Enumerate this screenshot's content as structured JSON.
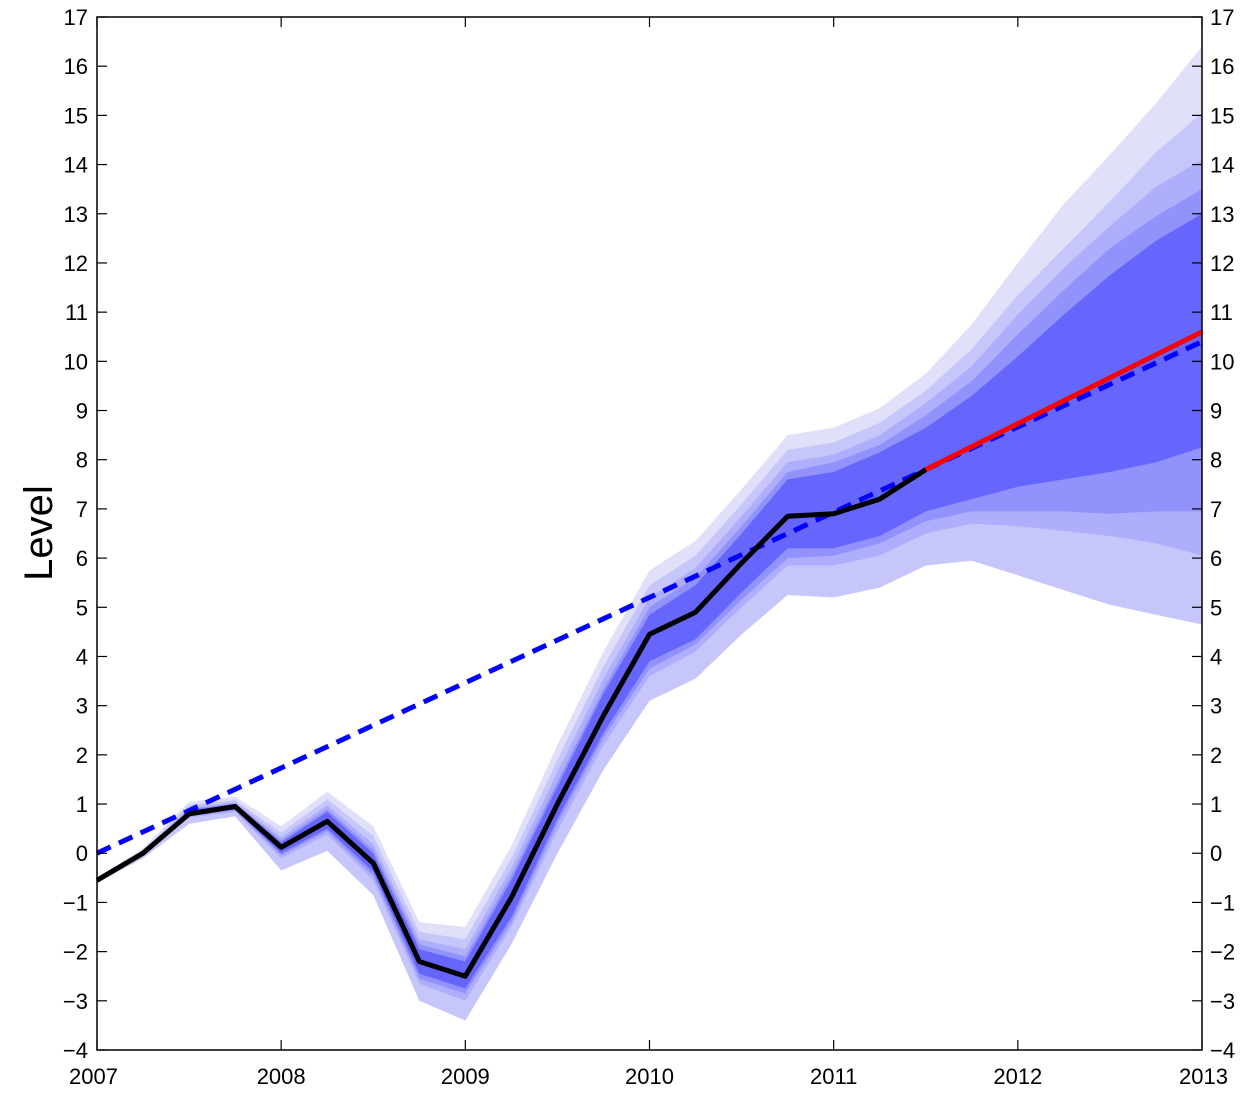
{
  "chart_data": {
    "type": "area",
    "title": "",
    "xlabel": "",
    "ylabel": "Level",
    "xlim": [
      2007,
      2013
    ],
    "ylim": [
      -4,
      17
    ],
    "x_ticks": [
      "2007",
      "2008",
      "2009",
      "2010",
      "2011",
      "2012",
      "2013"
    ],
    "y_ticks": [
      "−4",
      "−3",
      "−2",
      "−1",
      "0",
      "1",
      "2",
      "3",
      "4",
      "5",
      "6",
      "7",
      "8",
      "9",
      "10",
      "11",
      "12",
      "13",
      "14",
      "15",
      "16",
      "17"
    ],
    "y_ticks_mirrored_right": true,
    "grid": false,
    "legend": "none",
    "fan_x": [
      2007.0,
      2007.25,
      2007.5,
      2007.75,
      2008.0,
      2008.25,
      2008.5,
      2008.75,
      2009.0,
      2009.25,
      2009.5,
      2009.75,
      2010.0,
      2010.25,
      2010.5,
      2010.75,
      2011.0,
      2011.25,
      2011.5,
      2011.75,
      2012.0,
      2012.25,
      2012.5,
      2012.75,
      2013.0
    ],
    "fan_bands": [
      {
        "color": "#e0e0fb",
        "upper": [
          -0.5,
          0.1,
          1.05,
          1.15,
          0.55,
          1.25,
          0.55,
          -1.4,
          -1.5,
          0.15,
          2.2,
          4.1,
          5.75,
          6.35,
          7.4,
          8.5,
          8.65,
          9.05,
          9.75,
          10.75,
          12.0,
          13.2,
          14.2,
          15.25,
          16.4
        ],
        "lower": [
          -0.6,
          -0.1,
          0.6,
          0.75,
          -0.35,
          0.05,
          -0.85,
          -3.0,
          -3.4,
          -1.85,
          0.0,
          1.7,
          3.1,
          3.55,
          4.45,
          5.25,
          5.2,
          5.4,
          5.85,
          5.95,
          5.65,
          5.35,
          5.05,
          4.85,
          4.65
        ]
      },
      {
        "color": "#c6c6fb",
        "upper": [
          -0.5,
          0.05,
          0.98,
          1.08,
          0.42,
          1.1,
          0.35,
          -1.6,
          -1.75,
          -0.1,
          1.9,
          3.8,
          5.45,
          6.05,
          7.1,
          8.2,
          8.35,
          8.75,
          9.4,
          10.25,
          11.35,
          12.3,
          13.25,
          14.25,
          15.05
        ]
      },
      {
        "color": "#aeaefd",
        "upper": [
          -0.5,
          0.02,
          0.92,
          1.04,
          0.32,
          0.98,
          0.18,
          -1.75,
          -1.95,
          -0.3,
          1.65,
          3.55,
          5.2,
          5.8,
          6.85,
          7.95,
          8.1,
          8.5,
          9.15,
          9.9,
          10.95,
          11.9,
          12.75,
          13.55,
          14.1
        ],
        "lower": [
          -0.57,
          -0.04,
          0.72,
          0.84,
          -0.1,
          0.38,
          -0.55,
          -2.65,
          -3.0,
          -1.5,
          0.45,
          2.2,
          3.6,
          4.1,
          5.0,
          5.85,
          5.85,
          6.05,
          6.5,
          6.7,
          6.65,
          6.55,
          6.45,
          6.3,
          6.05
        ]
      },
      {
        "color": "#9292fd",
        "upper": [
          -0.5,
          0.0,
          0.9,
          1.01,
          0.26,
          0.9,
          0.07,
          -1.85,
          -2.1,
          -0.45,
          1.45,
          3.35,
          5.0,
          5.6,
          6.65,
          7.75,
          7.95,
          8.3,
          8.9,
          9.6,
          10.55,
          11.45,
          12.3,
          12.95,
          13.5
        ],
        "lower": [
          -0.55,
          -0.03,
          0.75,
          0.87,
          -0.04,
          0.45,
          -0.46,
          -2.55,
          -2.85,
          -1.4,
          0.6,
          2.35,
          3.75,
          4.25,
          5.15,
          6.0,
          6.05,
          6.3,
          6.75,
          6.95,
          6.95,
          6.95,
          6.9,
          6.95,
          6.95
        ]
      },
      {
        "color": "#6666fd",
        "upper": [
          -0.52,
          -0.01,
          0.88,
          0.99,
          0.22,
          0.84,
          -0.01,
          -1.95,
          -2.2,
          -0.55,
          1.35,
          3.25,
          4.85,
          5.45,
          6.5,
          7.6,
          7.75,
          8.15,
          8.65,
          9.3,
          10.1,
          10.95,
          11.75,
          12.45,
          13.0
        ],
        "lower": [
          -0.54,
          -0.02,
          0.77,
          0.89,
          0.0,
          0.5,
          -0.38,
          -2.45,
          -2.75,
          -1.3,
          0.7,
          2.45,
          3.9,
          4.35,
          5.3,
          6.2,
          6.2,
          6.45,
          6.95,
          7.2,
          7.45,
          7.6,
          7.75,
          7.95,
          8.25
        ]
      }
    ],
    "series": [
      {
        "style": "solid",
        "color": "#000000",
        "x": [
          2007.0,
          2007.25,
          2007.5,
          2007.75,
          2008.0,
          2008.25,
          2008.5,
          2008.75,
          2009.0,
          2009.25,
          2009.5,
          2009.75,
          2010.0,
          2010.25,
          2010.5,
          2010.75,
          2011.0,
          2011.25,
          2011.5
        ],
        "y": [
          -0.55,
          0.0,
          0.8,
          0.95,
          0.12,
          0.65,
          -0.2,
          -2.2,
          -2.5,
          -0.9,
          1.0,
          2.8,
          4.45,
          4.9,
          5.9,
          6.85,
          6.9,
          7.2,
          7.8
        ]
      },
      {
        "style": "solid",
        "color": "#ff0000",
        "x": [
          2011.5,
          2013.0
        ],
        "y": [
          7.8,
          10.6
        ]
      },
      {
        "style": "dashed",
        "color": "#0000ff",
        "x": [
          2007.0,
          2013.0
        ],
        "y": [
          0.0,
          10.4
        ]
      }
    ]
  }
}
